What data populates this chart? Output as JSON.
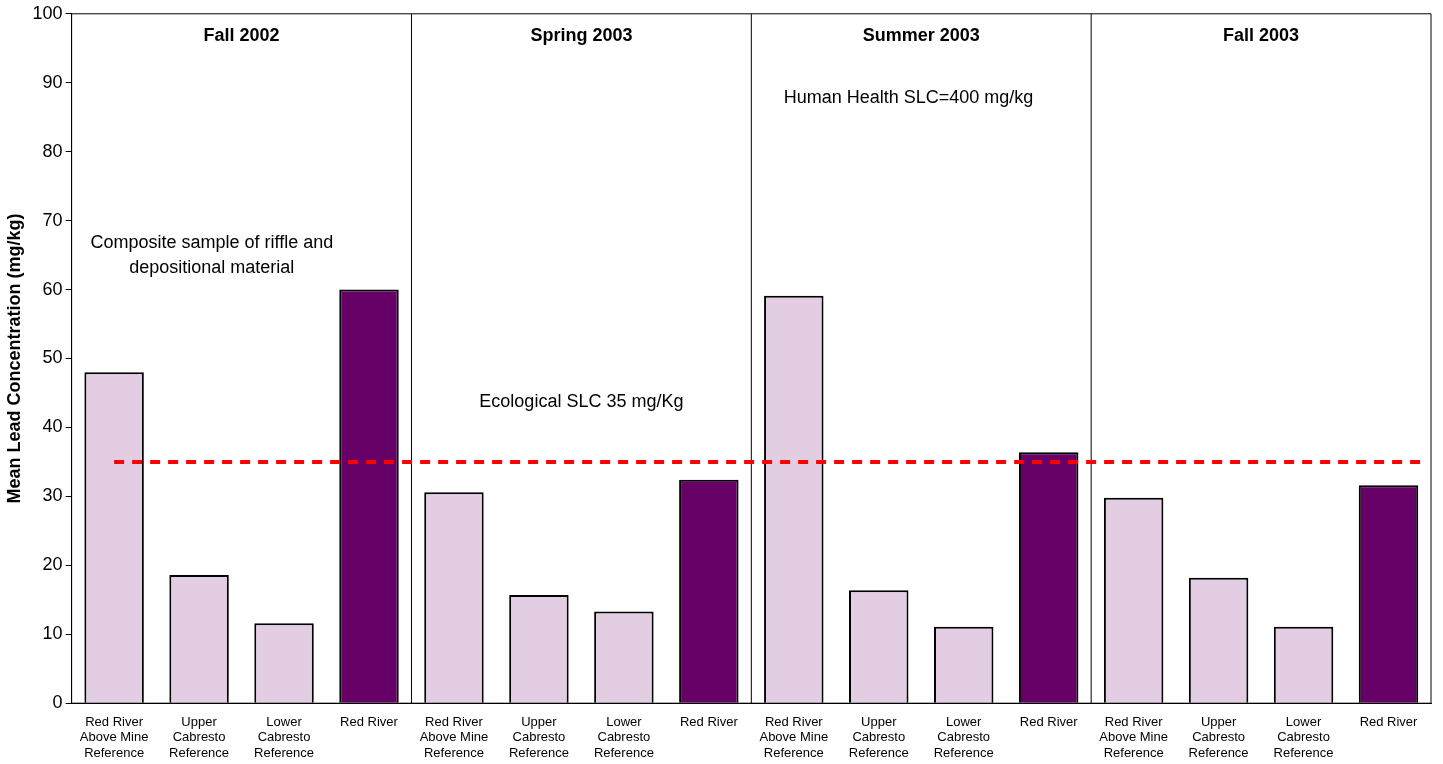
{
  "chart_data": {
    "type": "bar",
    "ylabel": "Mean Lead Concentration (mg/kg)",
    "categories": [
      "Red River Above Mine Reference",
      "Upper Cabresto Reference",
      "Lower Cabresto Reference",
      "Red River",
      "Red River Above Mine Reference",
      "Upper Cabresto Reference",
      "Lower Cabresto Reference",
      "Red River",
      "Red River Above Mine Reference",
      "Upper Cabresto Reference",
      "Lower Cabresto Reference",
      "Red River",
      "Red River Above Mine Reference",
      "Upper Cabresto Reference",
      "Lower Cabresto Reference",
      "Red River"
    ],
    "values": [
      48,
      18.6,
      11.6,
      60,
      30.6,
      15.7,
      13.3,
      32.4,
      59.1,
      16.4,
      11.1,
      36.4,
      29.8,
      18.2,
      11.1,
      31.6
    ],
    "colors": [
      "#e3cde3",
      "#e3cde3",
      "#e3cde3",
      "#660066",
      "#e3cde3",
      "#e3cde3",
      "#e3cde3",
      "#660066",
      "#e3cde3",
      "#e3cde3",
      "#e3cde3",
      "#660066",
      "#e3cde3",
      "#e3cde3",
      "#e3cde3",
      "#660066"
    ],
    "ylim": [
      0,
      100
    ],
    "yticks": [
      0,
      10,
      20,
      30,
      40,
      50,
      60,
      70,
      80,
      90,
      100
    ],
    "grid": false,
    "legend": false,
    "ref_lines": [
      {
        "axis": "y",
        "value": 35,
        "label": "Ecological SLC 35 mg/Kg",
        "color": "#ff0000",
        "line_style": "dashed"
      }
    ],
    "annotations": [
      "Fall 2002",
      "Spring 2003",
      "Summer 2003",
      "Fall 2003",
      "Composite sample of riffle and depositional material",
      "Human Health SLC=400 mg/kg"
    ]
  }
}
